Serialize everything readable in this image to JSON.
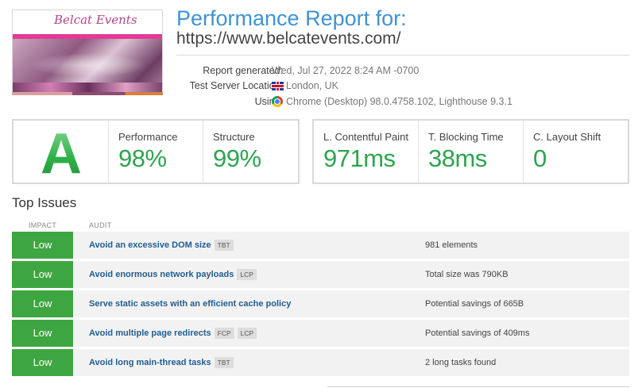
{
  "thumbnail": {
    "logo_text": "Belcat Events"
  },
  "report": {
    "title": "Performance Report for:",
    "url": "https://www.belcatevents.com/"
  },
  "meta": [
    {
      "key": "Report generated:",
      "value": "Wed, Jul 27, 2022 8:24 AM -0700",
      "icon": ""
    },
    {
      "key": "Test Server Location:",
      "value": "London, UK",
      "icon": "uk-flag-icon"
    },
    {
      "key": "Using:",
      "value": "Chrome (Desktop) 98.0.4758.102, Lighthouse 9.3.1",
      "icon": "chrome-icon"
    }
  ],
  "scores": {
    "grade": "A",
    "performance": {
      "label": "Performance",
      "value": "98%"
    },
    "structure": {
      "label": "Structure",
      "value": "99%"
    }
  },
  "vitals": {
    "lcp": {
      "label": "L. Contentful Paint",
      "value": "971ms"
    },
    "tbt": {
      "label": "T. Blocking Time",
      "value": "38ms"
    },
    "cls": {
      "label": "C. Layout Shift",
      "value": "0"
    }
  },
  "issues": {
    "section_title": "Top Issues",
    "col_impact": "IMPACT",
    "col_audit": "AUDIT",
    "rows": [
      {
        "impact": "Low",
        "audit": "Avoid an excessive DOM size",
        "tags": [
          "TBT"
        ],
        "result": "981 elements"
      },
      {
        "impact": "Low",
        "audit": "Avoid enormous network payloads",
        "tags": [
          "LCP"
        ],
        "result": "Total size was 790KB"
      },
      {
        "impact": "Low",
        "audit": "Serve static assets with an efficient cache policy",
        "tags": [],
        "result": "Potential savings of 665B"
      },
      {
        "impact": "Low",
        "audit": "Avoid multiple page redirects",
        "tags": [
          "FCP",
          "LCP"
        ],
        "result": "Potential savings of 409ms"
      },
      {
        "impact": "Low",
        "audit": "Avoid long main-thread tasks",
        "tags": [
          "TBT"
        ],
        "result": "2 long tasks found"
      }
    ]
  },
  "colors": {
    "accent_blue": "#3e93d2",
    "good_green": "#2ea44f",
    "impact_low": "#3ea640",
    "audit_link": "#1f5d92"
  }
}
